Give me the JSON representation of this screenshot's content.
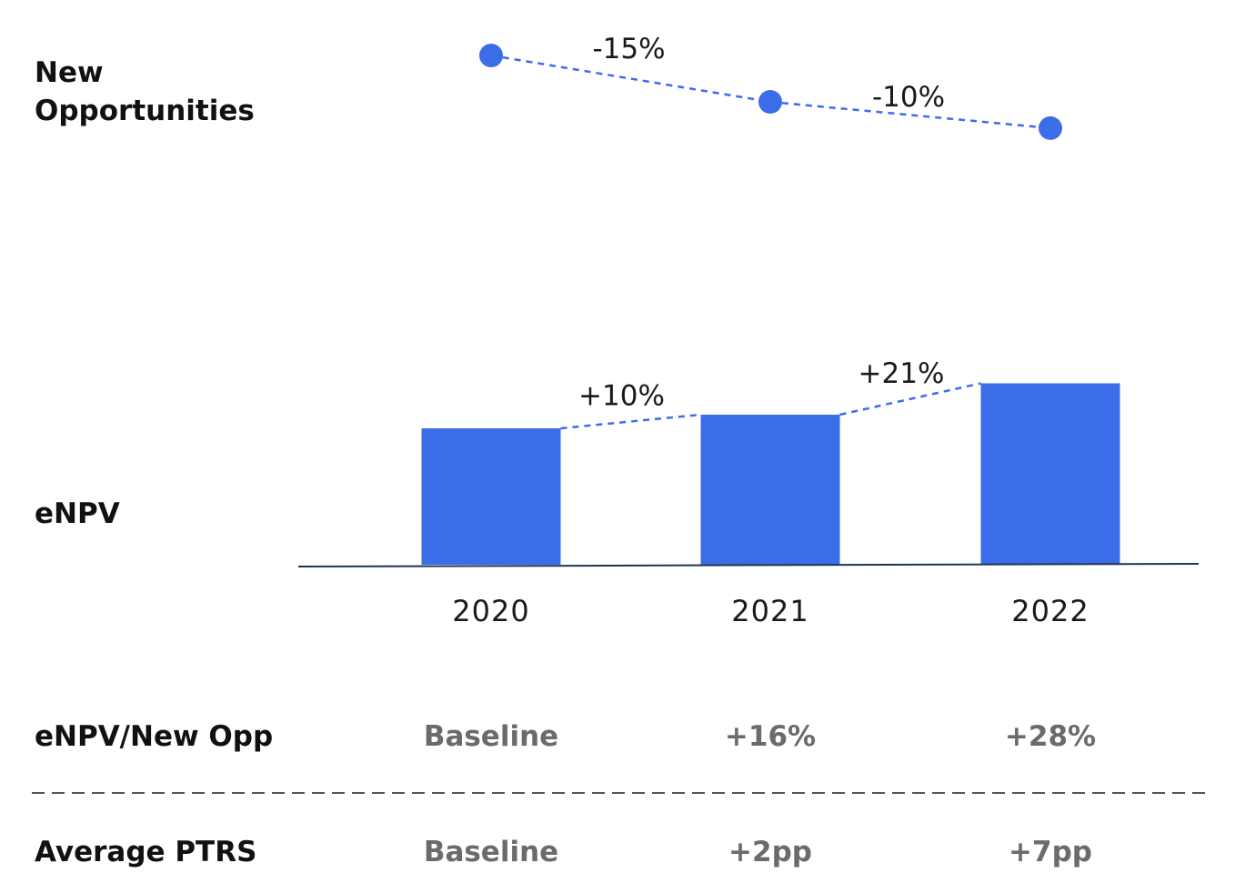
{
  "row_labels": {
    "new_opportunities_line1": "New",
    "new_opportunities_line2": "Opportunities",
    "enpv": "eNPV",
    "enpv_per_opp": "eNPV/New Opp",
    "average_ptrs": "Average PTRS"
  },
  "colors": {
    "accent": "#3b6de8",
    "axis": "#1f3450",
    "label": "#111111",
    "muted": "#6b6b6b",
    "divider": "#555555"
  },
  "chart_data": [
    {
      "type": "line",
      "x": [
        "2020",
        "2021",
        "2022"
      ],
      "values": [
        100,
        85,
        76.5
      ],
      "change_labels": [
        "-15%",
        "-10%"
      ],
      "line_style": "dashed",
      "grid": false
    },
    {
      "type": "bar",
      "categories": [
        "2020",
        "2021",
        "2022"
      ],
      "values": [
        100,
        110,
        133
      ],
      "change_labels": [
        "+10%",
        "+21%"
      ],
      "grid": false
    }
  ],
  "table": {
    "enpv_per_opp": [
      "Baseline",
      "+16%",
      "+28%"
    ],
    "average_ptrs": [
      "Baseline",
      "+2pp",
      "+7pp"
    ]
  }
}
